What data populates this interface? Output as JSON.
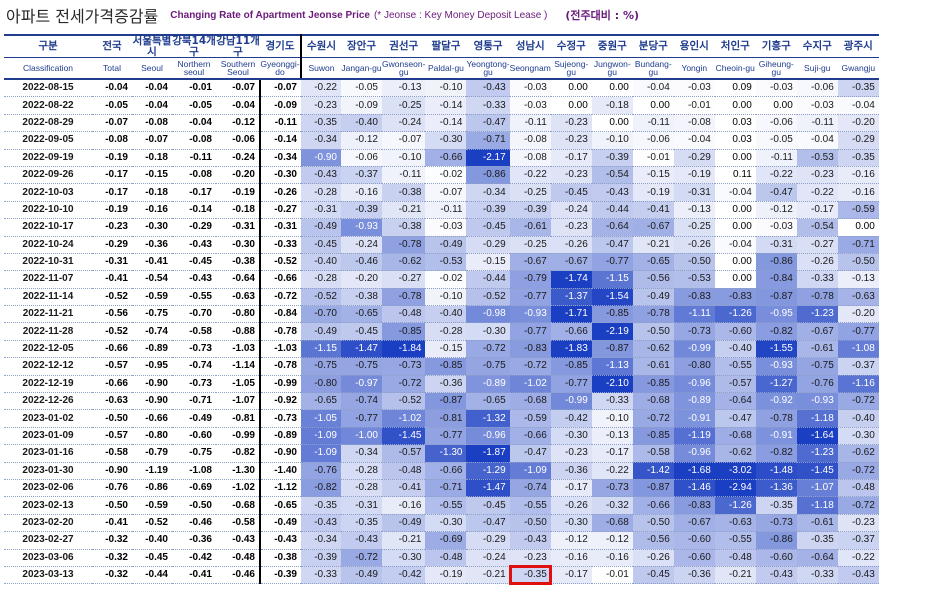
{
  "title": {
    "kr": "아파트 전세가격증감률",
    "en": "Changing Rate of Apartment Jeonse Price",
    "note": "(* Jeonse : Key Money Deposit Lease )",
    "unit": "(전주대비 : %)"
  },
  "columns": [
    {
      "kr": "구분",
      "en": "Classification"
    },
    {
      "kr": "전국",
      "en": "Total"
    },
    {
      "kr": "서울특별시",
      "en": "Seoul"
    },
    {
      "kr": "강북14개구",
      "en": "Northern seoul"
    },
    {
      "kr": "강남11개구",
      "en": "Southern Seoul"
    },
    {
      "kr": "경기도",
      "en": "Gyeonggi-do"
    },
    {
      "kr": "수원시",
      "en": "Suwon"
    },
    {
      "kr": "장안구",
      "en": "Jangan-gu"
    },
    {
      "kr": "권선구",
      "en": "Gwonseon-gu"
    },
    {
      "kr": "팔달구",
      "en": "Paldal-gu"
    },
    {
      "kr": "영통구",
      "en": "Yeongtong-gu"
    },
    {
      "kr": "성남시",
      "en": "Seongnam"
    },
    {
      "kr": "수정구",
      "en": "Sujeong-gu"
    },
    {
      "kr": "중원구",
      "en": "Jungwon-gu"
    },
    {
      "kr": "분당구",
      "en": "Bundang-gu"
    },
    {
      "kr": "용인시",
      "en": "Yongin"
    },
    {
      "kr": "처인구",
      "en": "Cheoin-gu"
    },
    {
      "kr": "기흥구",
      "en": "Giheung-gu"
    },
    {
      "kr": "수지구",
      "en": "Suji-gu"
    },
    {
      "kr": "광주시",
      "en": "Gwangju"
    }
  ],
  "rows": [
    {
      "date": "2022-08-15",
      "v": [
        "-0.04",
        "-0.04",
        "-0.01",
        "-0.07",
        "-0.07",
        "-0.22",
        "-0.05",
        "-0.13",
        "-0.10",
        "-0.43",
        "-0.03",
        "0.00",
        "0.00",
        "-0.04",
        "-0.03",
        "0.09",
        "-0.03",
        "-0.06",
        "-0.35"
      ]
    },
    {
      "date": "2022-08-22",
      "v": [
        "-0.05",
        "-0.04",
        "-0.05",
        "-0.04",
        "-0.09",
        "-0.23",
        "-0.09",
        "-0.25",
        "-0.14",
        "-0.33",
        "-0.03",
        "0.00",
        "-0.18",
        "0.00",
        "-0.01",
        "0.00",
        "0.00",
        "-0.03",
        "-0.04"
      ]
    },
    {
      "date": "2022-08-29",
      "v": [
        "-0.07",
        "-0.08",
        "-0.04",
        "-0.12",
        "-0.11",
        "-0.35",
        "-0.40",
        "-0.24",
        "-0.14",
        "-0.47",
        "-0.11",
        "-0.23",
        "0.00",
        "-0.11",
        "-0.08",
        "0.03",
        "-0.06",
        "-0.11",
        "-0.20"
      ]
    },
    {
      "date": "2022-09-05",
      "v": [
        "-0.08",
        "-0.07",
        "-0.08",
        "-0.06",
        "-0.14",
        "-0.34",
        "-0.12",
        "-0.07",
        "-0.30",
        "-0.71",
        "-0.08",
        "-0.23",
        "-0.10",
        "-0.06",
        "-0.04",
        "0.03",
        "-0.05",
        "-0.04",
        "-0.29"
      ]
    },
    {
      "date": "2022-09-19",
      "v": [
        "-0.19",
        "-0.18",
        "-0.11",
        "-0.24",
        "-0.34",
        "-0.90",
        "-0.06",
        "-0.10",
        "-0.66",
        "-2.17",
        "-0.08",
        "-0.17",
        "-0.39",
        "-0.01",
        "-0.29",
        "0.00",
        "-0.11",
        "-0.53",
        "-0.35"
      ]
    },
    {
      "date": "2022-09-26",
      "v": [
        "-0.17",
        "-0.15",
        "-0.08",
        "-0.20",
        "-0.30",
        "-0.43",
        "-0.37",
        "-0.11",
        "-0.02",
        "-0.86",
        "-0.22",
        "-0.23",
        "-0.54",
        "-0.15",
        "-0.19",
        "0.11",
        "-0.22",
        "-0.23",
        "-0.16"
      ]
    },
    {
      "date": "2022-10-03",
      "v": [
        "-0.17",
        "-0.18",
        "-0.17",
        "-0.19",
        "-0.26",
        "-0.28",
        "-0.16",
        "-0.38",
        "-0.07",
        "-0.34",
        "-0.25",
        "-0.45",
        "-0.43",
        "-0.19",
        "-0.31",
        "-0.04",
        "-0.47",
        "-0.22",
        "-0.16"
      ]
    },
    {
      "date": "2022-10-10",
      "v": [
        "-0.19",
        "-0.16",
        "-0.14",
        "-0.18",
        "-0.27",
        "-0.31",
        "-0.39",
        "-0.21",
        "-0.11",
        "-0.39",
        "-0.39",
        "-0.24",
        "-0.44",
        "-0.41",
        "-0.13",
        "0.00",
        "-0.12",
        "-0.17",
        "-0.59"
      ]
    },
    {
      "date": "2022-10-17",
      "v": [
        "-0.23",
        "-0.30",
        "-0.29",
        "-0.31",
        "-0.31",
        "-0.49",
        "-0.93",
        "-0.38",
        "-0.03",
        "-0.45",
        "-0.61",
        "-0.23",
        "-0.64",
        "-0.67",
        "-0.25",
        "0.00",
        "-0.03",
        "-0.54",
        "0.00"
      ]
    },
    {
      "date": "2022-10-24",
      "v": [
        "-0.29",
        "-0.36",
        "-0.43",
        "-0.30",
        "-0.33",
        "-0.45",
        "-0.24",
        "-0.78",
        "-0.49",
        "-0.29",
        "-0.25",
        "-0.26",
        "-0.47",
        "-0.21",
        "-0.26",
        "-0.04",
        "-0.31",
        "-0.27",
        "-0.71"
      ]
    },
    {
      "date": "2022-10-31",
      "v": [
        "-0.31",
        "-0.41",
        "-0.45",
        "-0.38",
        "-0.52",
        "-0.40",
        "-0.46",
        "-0.62",
        "-0.53",
        "-0.15",
        "-0.67",
        "-0.67",
        "-0.77",
        "-0.65",
        "-0.50",
        "0.00",
        "-0.86",
        "-0.26",
        "-0.50"
      ]
    },
    {
      "date": "2022-11-07",
      "v": [
        "-0.41",
        "-0.54",
        "-0.43",
        "-0.64",
        "-0.66",
        "-0.28",
        "-0.20",
        "-0.27",
        "-0.02",
        "-0.44",
        "-0.79",
        "-1.74",
        "-1.15",
        "-0.56",
        "-0.53",
        "0.00",
        "-0.84",
        "-0.33",
        "-0.13"
      ]
    },
    {
      "date": "2022-11-14",
      "v": [
        "-0.52",
        "-0.59",
        "-0.55",
        "-0.63",
        "-0.72",
        "-0.52",
        "-0.38",
        "-0.78",
        "-0.10",
        "-0.52",
        "-0.77",
        "-1.37",
        "-1.54",
        "-0.49",
        "-0.83",
        "-0.83",
        "-0.87",
        "-0.78",
        "-0.63"
      ]
    },
    {
      "date": "2022-11-21",
      "v": [
        "-0.56",
        "-0.75",
        "-0.70",
        "-0.80",
        "-0.84",
        "-0.70",
        "-0.65",
        "-0.48",
        "-0.40",
        "-0.98",
        "-0.93",
        "-1.71",
        "-0.85",
        "-0.78",
        "-1.11",
        "-1.26",
        "-0.95",
        "-1.23",
        "-0.20"
      ]
    },
    {
      "date": "2022-11-28",
      "v": [
        "-0.52",
        "-0.74",
        "-0.58",
        "-0.88",
        "-0.78",
        "-0.49",
        "-0.45",
        "-0.85",
        "-0.28",
        "-0.30",
        "-0.77",
        "-0.66",
        "-2.19",
        "-0.50",
        "-0.73",
        "-0.60",
        "-0.82",
        "-0.67",
        "-0.77"
      ]
    },
    {
      "date": "2022-12-05",
      "v": [
        "-0.66",
        "-0.89",
        "-0.73",
        "-1.03",
        "-1.03",
        "-1.15",
        "-1.47",
        "-1.84",
        "-0.15",
        "-0.72",
        "-0.83",
        "-1.83",
        "-0.87",
        "-0.62",
        "-0.99",
        "-0.40",
        "-1.55",
        "-0.61",
        "-1.08"
      ]
    },
    {
      "date": "2022-12-12",
      "v": [
        "-0.57",
        "-0.95",
        "-0.74",
        "-1.14",
        "-0.78",
        "-0.75",
        "-0.75",
        "-0.73",
        "-0.85",
        "-0.75",
        "-0.72",
        "-0.85",
        "-1.13",
        "-0.61",
        "-0.80",
        "-0.55",
        "-0.93",
        "-0.75",
        "-0.37"
      ]
    },
    {
      "date": "2022-12-19",
      "v": [
        "-0.66",
        "-0.90",
        "-0.73",
        "-1.05",
        "-0.99",
        "-0.80",
        "-0.97",
        "-0.72",
        "-0.36",
        "-0.89",
        "-1.02",
        "-0.77",
        "-2.10",
        "-0.85",
        "-0.96",
        "-0.57",
        "-1.27",
        "-0.76",
        "-1.16"
      ]
    },
    {
      "date": "2022-12-26",
      "v": [
        "-0.63",
        "-0.90",
        "-0.71",
        "-1.07",
        "-0.92",
        "-0.65",
        "-0.74",
        "-0.52",
        "-0.87",
        "-0.65",
        "-0.68",
        "-0.99",
        "-0.33",
        "-0.68",
        "-0.89",
        "-0.64",
        "-0.92",
        "-0.93",
        "-0.72"
      ]
    },
    {
      "date": "2023-01-02",
      "v": [
        "-0.50",
        "-0.66",
        "-0.49",
        "-0.81",
        "-0.73",
        "-1.05",
        "-0.77",
        "-1.02",
        "-0.81",
        "-1.32",
        "-0.59",
        "-0.42",
        "-0.10",
        "-0.72",
        "-0.91",
        "-0.47",
        "-0.78",
        "-1.18",
        "-0.40"
      ]
    },
    {
      "date": "2023-01-09",
      "v": [
        "-0.57",
        "-0.80",
        "-0.60",
        "-0.99",
        "-0.89",
        "-1.09",
        "-1.00",
        "-1.45",
        "-0.77",
        "-0.96",
        "-0.66",
        "-0.30",
        "-0.13",
        "-0.85",
        "-1.19",
        "-0.68",
        "-0.91",
        "-1.64",
        "-0.30"
      ]
    },
    {
      "date": "2023-01-16",
      "v": [
        "-0.58",
        "-0.79",
        "-0.75",
        "-0.82",
        "-0.90",
        "-1.09",
        "-0.34",
        "-0.57",
        "-1.30",
        "-1.87",
        "-0.47",
        "-0.23",
        "-0.17",
        "-0.58",
        "-0.96",
        "-0.62",
        "-0.82",
        "-1.23",
        "-0.62"
      ]
    },
    {
      "date": "2023-01-30",
      "v": [
        "-0.90",
        "-1.19",
        "-1.08",
        "-1.30",
        "-1.40",
        "-0.76",
        "-0.28",
        "-0.48",
        "-0.66",
        "-1.29",
        "-1.09",
        "-0.36",
        "-0.22",
        "-1.42",
        "-1.68",
        "-3.02",
        "-1.48",
        "-1.45",
        "-0.72"
      ]
    },
    {
      "date": "2023-02-06",
      "v": [
        "-0.76",
        "-0.86",
        "-0.69",
        "-1.02",
        "-1.12",
        "-0.82",
        "-0.28",
        "-0.41",
        "-0.71",
        "-1.47",
        "-0.74",
        "-0.17",
        "-0.73",
        "-0.87",
        "-1.46",
        "-2.94",
        "-1.36",
        "-1.07",
        "-0.48"
      ]
    },
    {
      "date": "2023-02-13",
      "v": [
        "-0.50",
        "-0.59",
        "-0.50",
        "-0.68",
        "-0.65",
        "-0.35",
        "-0.31",
        "-0.16",
        "-0.55",
        "-0.45",
        "-0.55",
        "-0.26",
        "-0.32",
        "-0.66",
        "-0.83",
        "-1.26",
        "-0.35",
        "-1.18",
        "-0.72"
      ]
    },
    {
      "date": "2023-02-20",
      "v": [
        "-0.41",
        "-0.52",
        "-0.46",
        "-0.58",
        "-0.49",
        "-0.43",
        "-0.35",
        "-0.49",
        "-0.30",
        "-0.47",
        "-0.50",
        "-0.30",
        "-0.68",
        "-0.50",
        "-0.67",
        "-0.63",
        "-0.73",
        "-0.61",
        "-0.23"
      ]
    },
    {
      "date": "2023-02-27",
      "v": [
        "-0.32",
        "-0.40",
        "-0.36",
        "-0.43",
        "-0.43",
        "-0.34",
        "-0.43",
        "-0.21",
        "-0.69",
        "-0.29",
        "-0.43",
        "-0.12",
        "-0.12",
        "-0.56",
        "-0.60",
        "-0.55",
        "-0.86",
        "-0.35",
        "-0.37"
      ]
    },
    {
      "date": "2023-03-06",
      "v": [
        "-0.32",
        "-0.45",
        "-0.42",
        "-0.48",
        "-0.38",
        "-0.39",
        "-0.72",
        "-0.30",
        "-0.48",
        "-0.24",
        "-0.23",
        "-0.16",
        "-0.16",
        "-0.26",
        "-0.60",
        "-0.48",
        "-0.60",
        "-0.64",
        "-0.22"
      ]
    },
    {
      "date": "2023-03-13",
      "v": [
        "-0.32",
        "-0.44",
        "-0.41",
        "-0.46",
        "-0.39",
        "-0.33",
        "-0.49",
        "-0.42",
        "-0.19",
        "-0.21",
        "-0.35",
        "-0.17",
        "-0.01",
        "-0.45",
        "-0.36",
        "-0.21",
        "-0.43",
        "-0.33",
        "-0.43"
      ]
    }
  ],
  "highlight": {
    "row": 28,
    "col": 10,
    "color": "#e01010"
  },
  "colors": {
    "header_text": "#1f3c8f",
    "title_purple": "#6a1a7a",
    "scale_light": "#ffffff",
    "scale_dark": "#1b3fc2"
  }
}
